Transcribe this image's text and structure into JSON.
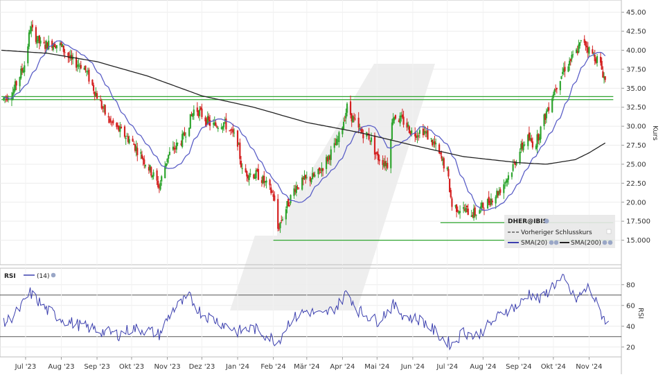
{
  "chart_data": [
    {
      "type": "candlestick",
      "title": "",
      "ylabel": "Kurs",
      "ylim": [
        12.5,
        46.25
      ],
      "yticks": [
        "15.000",
        "17.500",
        "20.00",
        "22.50",
        "25.00",
        "27.50",
        "30.00",
        "32.50",
        "35.00",
        "37.50",
        "40.00",
        "42.50",
        "45.00"
      ],
      "ytick_values": [
        15,
        17.5,
        20,
        22.5,
        25,
        27.5,
        30,
        32.5,
        35,
        37.5,
        40,
        42.5,
        45
      ],
      "xticks": [
        "Jul '23",
        "Aug '23",
        "Sep '23",
        "Okt '23",
        "Nov '23",
        "Dez '23",
        "Jan '24",
        "Feb '24",
        "Mär '24",
        "Apr '24",
        "Mai '24",
        "Jun '24",
        "Jul '24",
        "Aug '24",
        "Sep '24",
        "Okt '24",
        "Nov '24"
      ],
      "xtick_dates": [
        "2023-07-01",
        "2023-08-01",
        "2023-09-01",
        "2023-10-01",
        "2023-11-01",
        "2023-12-01",
        "2024-01-01",
        "2024-02-01",
        "2024-03-01",
        "2024-04-01",
        "2024-05-01",
        "2024-06-01",
        "2024-07-01",
        "2024-08-01",
        "2024-09-01",
        "2024-10-01",
        "2024-11-01"
      ],
      "price_anchors": [
        [
          "2023-06-10",
          33.5
        ],
        [
          "2023-06-20",
          34.5
        ],
        [
          "2023-07-01",
          38.5
        ],
        [
          "2023-07-05",
          43.0
        ],
        [
          "2023-07-15",
          40.5
        ],
        [
          "2023-07-25",
          41.0
        ],
        [
          "2023-08-01",
          40.5
        ],
        [
          "2023-08-10",
          38.5
        ],
        [
          "2023-08-20",
          38.0
        ],
        [
          "2023-09-01",
          34.0
        ],
        [
          "2023-09-10",
          31.0
        ],
        [
          "2023-09-20",
          29.5
        ],
        [
          "2023-10-01",
          28.0
        ],
        [
          "2023-10-10",
          26.0
        ],
        [
          "2023-10-20",
          23.5
        ],
        [
          "2023-10-25",
          22.0
        ],
        [
          "2023-11-01",
          26.0
        ],
        [
          "2023-11-15",
          28.5
        ],
        [
          "2023-11-25",
          32.5
        ],
        [
          "2023-12-01",
          31.5
        ],
        [
          "2023-12-10",
          30.0
        ],
        [
          "2023-12-20",
          30.5
        ],
        [
          "2024-01-01",
          28.0
        ],
        [
          "2024-01-05",
          24.0
        ],
        [
          "2024-01-20",
          23.5
        ],
        [
          "2024-02-01",
          21.0
        ],
        [
          "2024-02-05",
          16.5
        ],
        [
          "2024-02-10",
          18.5
        ],
        [
          "2024-02-20",
          22.0
        ],
        [
          "2024-03-01",
          23.0
        ],
        [
          "2024-03-10",
          23.5
        ],
        [
          "2024-03-20",
          26.0
        ],
        [
          "2024-03-28",
          28.0
        ],
        [
          "2024-04-05",
          32.5
        ],
        [
          "2024-04-15",
          29.5
        ],
        [
          "2024-04-25",
          28.5
        ],
        [
          "2024-05-01",
          26.0
        ],
        [
          "2024-05-10",
          25.0
        ],
        [
          "2024-05-15",
          31.5
        ],
        [
          "2024-05-25",
          30.5
        ],
        [
          "2024-06-01",
          29.0
        ],
        [
          "2024-06-10",
          29.5
        ],
        [
          "2024-06-20",
          27.5
        ],
        [
          "2024-07-01",
          24.0
        ],
        [
          "2024-07-05",
          19.5
        ],
        [
          "2024-07-15",
          19.0
        ],
        [
          "2024-07-25",
          18.5
        ],
        [
          "2024-08-05",
          20.0
        ],
        [
          "2024-08-15",
          21.5
        ],
        [
          "2024-08-25",
          24.0
        ],
        [
          "2024-09-01",
          26.5
        ],
        [
          "2024-09-08",
          28.5
        ],
        [
          "2024-09-15",
          27.5
        ],
        [
          "2024-09-22",
          30.5
        ],
        [
          "2024-10-01",
          34.5
        ],
        [
          "2024-10-10",
          37.5
        ],
        [
          "2024-10-20",
          39.5
        ],
        [
          "2024-10-27",
          41.5
        ],
        [
          "2024-11-01",
          40.0
        ],
        [
          "2024-11-10",
          38.5
        ],
        [
          "2024-11-15",
          36.0
        ]
      ],
      "series": [
        {
          "name": "SMA(20)",
          "color": "#5b5fc7"
        },
        {
          "name": "SMA(200)",
          "color": "#222222"
        }
      ],
      "sma200_anchors": [
        [
          "2023-06-10",
          40.0
        ],
        [
          "2023-07-20",
          39.6
        ],
        [
          "2023-09-01",
          38.5
        ],
        [
          "2023-10-15",
          36.6
        ],
        [
          "2023-12-01",
          34.0
        ],
        [
          "2024-01-15",
          32.5
        ],
        [
          "2024-03-01",
          30.5
        ],
        [
          "2024-04-15",
          29.2
        ],
        [
          "2024-06-01",
          27.5
        ],
        [
          "2024-07-15",
          26.0
        ],
        [
          "2024-09-01",
          25.2
        ],
        [
          "2024-09-25",
          25.0
        ],
        [
          "2024-10-20",
          25.6
        ],
        [
          "2024-11-01",
          26.5
        ],
        [
          "2024-11-15",
          27.8
        ]
      ],
      "hlines": [
        {
          "y": 33.5,
          "from": "2023-06-10",
          "to": "2024-11-22",
          "color": "#2fa52f"
        },
        {
          "y": 33.9,
          "from": "2023-06-10",
          "to": "2024-11-22",
          "color": "#2fa52f"
        },
        {
          "y": 17.3,
          "from": "2024-06-25",
          "to": "2024-11-22",
          "color": "#2fa52f"
        },
        {
          "y": 15.0,
          "from": "2024-02-01",
          "to": "2024-11-22",
          "color": "#2fa52f"
        }
      ],
      "legend_position": "lower-right",
      "legend": {
        "symbol": "DHER@IBIS",
        "prev_close": "Vorheriger Schlusskurs",
        "sma20": "SMA(20)",
        "sma200": "SMA(200)"
      },
      "up_color": "#2fa52f",
      "down_color": "#d42020"
    },
    {
      "type": "line",
      "title": "RSI",
      "period_label": "(14)",
      "ylabel": "RSI",
      "ylim": [
        12.5,
        92.5
      ],
      "yticks": [
        "20",
        "40",
        "60",
        "80"
      ],
      "ytick_values": [
        20,
        40,
        60,
        80
      ],
      "reference_lines": [
        30,
        70
      ],
      "series": [
        {
          "name": "(14)",
          "color": "#3b3fae"
        }
      ],
      "rsi_anchors": [
        [
          "2023-06-10",
          40
        ],
        [
          "2023-06-25",
          55
        ],
        [
          "2023-07-05",
          72
        ],
        [
          "2023-07-20",
          55
        ],
        [
          "2023-08-05",
          45
        ],
        [
          "2023-08-20",
          40
        ],
        [
          "2023-09-05",
          35
        ],
        [
          "2023-09-20",
          32
        ],
        [
          "2023-10-01",
          38
        ],
        [
          "2023-10-15",
          36
        ],
        [
          "2023-10-25",
          32
        ],
        [
          "2023-11-05",
          55
        ],
        [
          "2023-11-20",
          68
        ],
        [
          "2023-12-01",
          52
        ],
        [
          "2023-12-15",
          45
        ],
        [
          "2024-01-01",
          35
        ],
        [
          "2024-01-15",
          38
        ],
        [
          "2024-02-05",
          25
        ],
        [
          "2024-02-15",
          45
        ],
        [
          "2024-03-01",
          55
        ],
        [
          "2024-03-15",
          50
        ],
        [
          "2024-03-28",
          60
        ],
        [
          "2024-04-05",
          73
        ],
        [
          "2024-04-15",
          55
        ],
        [
          "2024-05-01",
          45
        ],
        [
          "2024-05-15",
          60
        ],
        [
          "2024-05-25",
          50
        ],
        [
          "2024-06-10",
          45
        ],
        [
          "2024-06-25",
          30
        ],
        [
          "2024-07-05",
          22
        ],
        [
          "2024-07-15",
          35
        ],
        [
          "2024-07-25",
          30
        ],
        [
          "2024-08-05",
          40
        ],
        [
          "2024-08-20",
          55
        ],
        [
          "2024-09-01",
          60
        ],
        [
          "2024-09-10",
          72
        ],
        [
          "2024-09-20",
          65
        ],
        [
          "2024-10-01",
          80
        ],
        [
          "2024-10-10",
          85
        ],
        [
          "2024-10-20",
          65
        ],
        [
          "2024-11-01",
          78
        ],
        [
          "2024-11-10",
          55
        ],
        [
          "2024-11-18",
          42
        ]
      ]
    }
  ]
}
